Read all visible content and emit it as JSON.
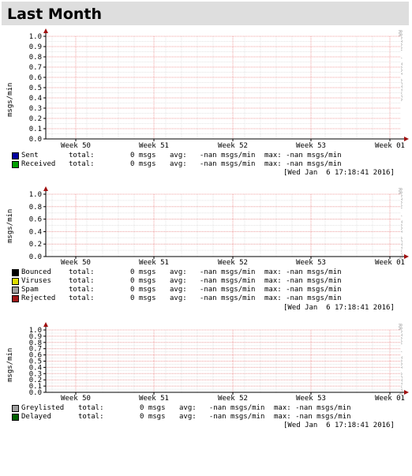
{
  "header": {
    "title": "Last Month"
  },
  "side_label": "RRDTOOL / TOBI OETIKER",
  "timestamp": "[Wed Jan  6 17:18:41 2016]",
  "colors": {
    "grid_major": "#f0a0a0",
    "grid_minor": "#e4e4e4",
    "axis": "#000000",
    "arrow": "#a01010"
  },
  "charts": [
    {
      "ylabel": "msgs/min",
      "legend": [
        {
          "name": "Sent",
          "color": "#0000a0",
          "total_label": "total:",
          "total": "0 msgs",
          "avg": "avg:   -nan msgs/min",
          "max": "max: -nan msgs/min"
        },
        {
          "name": "Received",
          "color": "#00a000",
          "total_label": "total:",
          "total": "0 msgs",
          "avg": "avg:   -nan msgs/min",
          "max": "max: -nan msgs/min"
        }
      ]
    },
    {
      "ylabel": "msgs/min",
      "legend": [
        {
          "name": "Bounced",
          "color": "#000000",
          "total_label": "total:",
          "total": "0 msgs",
          "avg": "avg:   -nan msgs/min",
          "max": "max: -nan msgs/min"
        },
        {
          "name": "Viruses",
          "color": "#e0e000",
          "total_label": "total:",
          "total": "0 msgs",
          "avg": "avg:   -nan msgs/min",
          "max": "max: -nan msgs/min"
        },
        {
          "name": "Spam",
          "color": "#a0a0a0",
          "total_label": "total:",
          "total": "0 msgs",
          "avg": "avg:   -nan msgs/min",
          "max": "max: -nan msgs/min"
        },
        {
          "name": "Rejected",
          "color": "#a01818",
          "total_label": "total:",
          "total": "0 msgs",
          "avg": "avg:   -nan msgs/min",
          "max": "max: -nan msgs/min"
        }
      ]
    },
    {
      "ylabel": "msgs/min",
      "legend": [
        {
          "name": "Greylisted",
          "color": "#a0a0a0",
          "total_label": "total:",
          "total": "0 msgs",
          "avg": "avg:   -nan msgs/min",
          "max": "max: -nan msgs/min"
        },
        {
          "name": "Delayed",
          "color": "#006000",
          "total_label": "total:",
          "total": "0 msgs",
          "avg": "avg:   -nan msgs/min",
          "max": "max: -nan msgs/min"
        }
      ]
    }
  ],
  "chart_data": [
    {
      "type": "line",
      "series": [
        {
          "name": "Sent",
          "values": []
        },
        {
          "name": "Received",
          "values": []
        }
      ],
      "x_ticks": [
        "Week 50",
        "Week 51",
        "Week 52",
        "Week 53",
        "Week 01"
      ],
      "y_ticks": [
        "0.0",
        "0.1",
        "0.2",
        "0.3",
        "0.4",
        "0.5",
        "0.6",
        "0.7",
        "0.8",
        "0.9",
        "1.0"
      ],
      "ylim": [
        0,
        1
      ],
      "ylabel": "msgs/min",
      "grid": true
    },
    {
      "type": "line",
      "series": [
        {
          "name": "Bounced",
          "values": []
        },
        {
          "name": "Viruses",
          "values": []
        },
        {
          "name": "Spam",
          "values": []
        },
        {
          "name": "Rejected",
          "values": []
        }
      ],
      "x_ticks": [
        "Week 50",
        "Week 51",
        "Week 52",
        "Week 53",
        "Week 01"
      ],
      "y_ticks": [
        "0.0",
        "0.2",
        "0.4",
        "0.6",
        "0.8",
        "1.0"
      ],
      "ylim": [
        0,
        1
      ],
      "ylabel": "msgs/min",
      "grid": true
    },
    {
      "type": "line",
      "series": [
        {
          "name": "Greylisted",
          "values": []
        },
        {
          "name": "Delayed",
          "values": []
        }
      ],
      "x_ticks": [
        "Week 50",
        "Week 51",
        "Week 52",
        "Week 53",
        "Week 01"
      ],
      "y_ticks": [
        "0.0",
        "0.1",
        "0.2",
        "0.3",
        "0.4",
        "0.5",
        "0.6",
        "0.7",
        "0.8",
        "0.9",
        "1.0"
      ],
      "ylim": [
        0,
        1
      ],
      "ylabel": "msgs/min",
      "grid": true
    }
  ]
}
